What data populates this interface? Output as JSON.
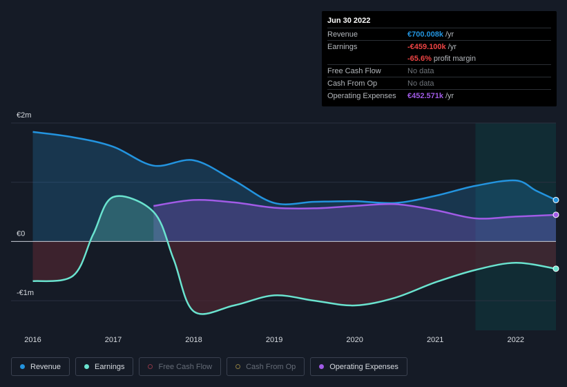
{
  "tooltip": {
    "date": "Jun 30 2022",
    "revenue_label": "Revenue",
    "revenue_value": "€700.008k",
    "revenue_unit": "/yr",
    "earnings_label": "Earnings",
    "earnings_value": "-€459.100k",
    "earnings_unit": "/yr",
    "margin_value": "-65.6%",
    "margin_text": "profit margin",
    "fcf_label": "Free Cash Flow",
    "fcf_value": "No data",
    "cfo_label": "Cash From Op",
    "cfo_value": "No data",
    "opex_label": "Operating Expenses",
    "opex_value": "€452.571k",
    "opex_unit": "/yr"
  },
  "legend": {
    "revenue": "Revenue",
    "earnings": "Earnings",
    "fcf": "Free Cash Flow",
    "cfo": "Cash From Op",
    "opex": "Operating Expenses"
  },
  "colors": {
    "revenue": "#2394df",
    "earnings": "#6ae3cf",
    "opex": "#a15be6",
    "negative_fill": "#4a2630",
    "fcf_dot": "#8a3645",
    "cfo_dot": "#8a7a40",
    "highlight": "#0e3a40"
  },
  "chart_data": {
    "type": "area",
    "y_tick_labels": [
      "€2m",
      "€0",
      "-€1m"
    ],
    "x_tick_labels": [
      "2016",
      "2017",
      "2018",
      "2019",
      "2020",
      "2021",
      "2022"
    ],
    "ylim": [
      -1.5,
      2.0
    ],
    "y_unit": "€m",
    "highlight_range": [
      2021.5,
      2022.5
    ],
    "series": [
      {
        "name": "Revenue",
        "points": [
          [
            2016.0,
            1.85
          ],
          [
            2016.5,
            1.76
          ],
          [
            2017.0,
            1.6
          ],
          [
            2017.5,
            1.28
          ],
          [
            2018.0,
            1.37
          ],
          [
            2018.5,
            1.03
          ],
          [
            2019.0,
            0.65
          ],
          [
            2019.5,
            0.67
          ],
          [
            2020.0,
            0.68
          ],
          [
            2020.5,
            0.65
          ],
          [
            2021.0,
            0.77
          ],
          [
            2021.5,
            0.94
          ],
          [
            2022.0,
            1.03
          ],
          [
            2022.25,
            0.86
          ],
          [
            2022.5,
            0.7
          ]
        ]
      },
      {
        "name": "Earnings",
        "points": [
          [
            2016.0,
            -0.67
          ],
          [
            2016.5,
            -0.58
          ],
          [
            2016.75,
            0.12
          ],
          [
            2017.0,
            0.75
          ],
          [
            2017.5,
            0.5
          ],
          [
            2017.75,
            -0.3
          ],
          [
            2018.0,
            -1.18
          ],
          [
            2018.5,
            -1.08
          ],
          [
            2019.0,
            -0.91
          ],
          [
            2019.5,
            -1.0
          ],
          [
            2020.0,
            -1.08
          ],
          [
            2020.5,
            -0.95
          ],
          [
            2021.0,
            -0.69
          ],
          [
            2021.5,
            -0.48
          ],
          [
            2022.0,
            -0.36
          ],
          [
            2022.5,
            -0.46
          ]
        ]
      },
      {
        "name": "Operating Expenses",
        "points": [
          [
            2017.5,
            0.6
          ],
          [
            2018.0,
            0.7
          ],
          [
            2018.5,
            0.66
          ],
          [
            2019.0,
            0.57
          ],
          [
            2019.5,
            0.56
          ],
          [
            2020.0,
            0.6
          ],
          [
            2020.5,
            0.63
          ],
          [
            2021.0,
            0.53
          ],
          [
            2021.5,
            0.39
          ],
          [
            2022.0,
            0.42
          ],
          [
            2022.5,
            0.45
          ]
        ]
      }
    ]
  }
}
